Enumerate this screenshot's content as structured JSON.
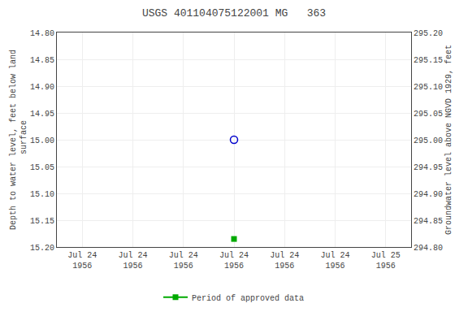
{
  "chart_data": {
    "type": "scatter",
    "title": "USGS 401104075122001 MG   363",
    "y_label": "Depth to water level, feet below land\n surface",
    "y2_label": "Groundwater level above NGVD 1929, feet",
    "categories": [
      "Jul 24\n1956",
      "Jul 24\n1956",
      "Jul 24\n1956",
      "Jul 24\n1956",
      "Jul 24\n1956",
      "Jul 24\n1956",
      "Jul 25\n1956"
    ],
    "series": [
      {
        "color": "#0000cc",
        "marker": "open circle",
        "values": [
          null,
          null,
          null,
          15.0,
          null,
          null,
          null
        ]
      },
      {
        "name": "Period of approved data",
        "color": "#00aa00",
        "marker": "square",
        "line_style": "solid",
        "values": [
          null,
          null,
          null,
          15.185,
          null,
          null,
          null
        ]
      }
    ],
    "ylim": [
      15.2,
      14.8
    ],
    "yticks": [
      {
        "value": 14.8,
        "label": "14.80"
      },
      14.85,
      {
        "value": 14.9,
        "label": "14.90"
      },
      14.95,
      {
        "value": 15.0,
        "label": "15.00"
      },
      15.05,
      {
        "value": 15.1,
        "label": "15.10"
      },
      15.15,
      {
        "value": 15.2,
        "label": "15.20"
      }
    ],
    "y2lim": [
      294.8,
      295.2
    ],
    "y2ticks": [
      {
        "value": 295.2,
        "label": "295.20"
      },
      295.15,
      {
        "value": 295.1,
        "label": "295.10"
      },
      295.05,
      {
        "value": 295.0,
        "label": "295.00"
      },
      294.95,
      {
        "value": 294.9,
        "label": "294.90"
      },
      294.85,
      {
        "value": 294.8,
        "label": "294.80"
      }
    ],
    "grid": true,
    "legend": "bottom"
  }
}
